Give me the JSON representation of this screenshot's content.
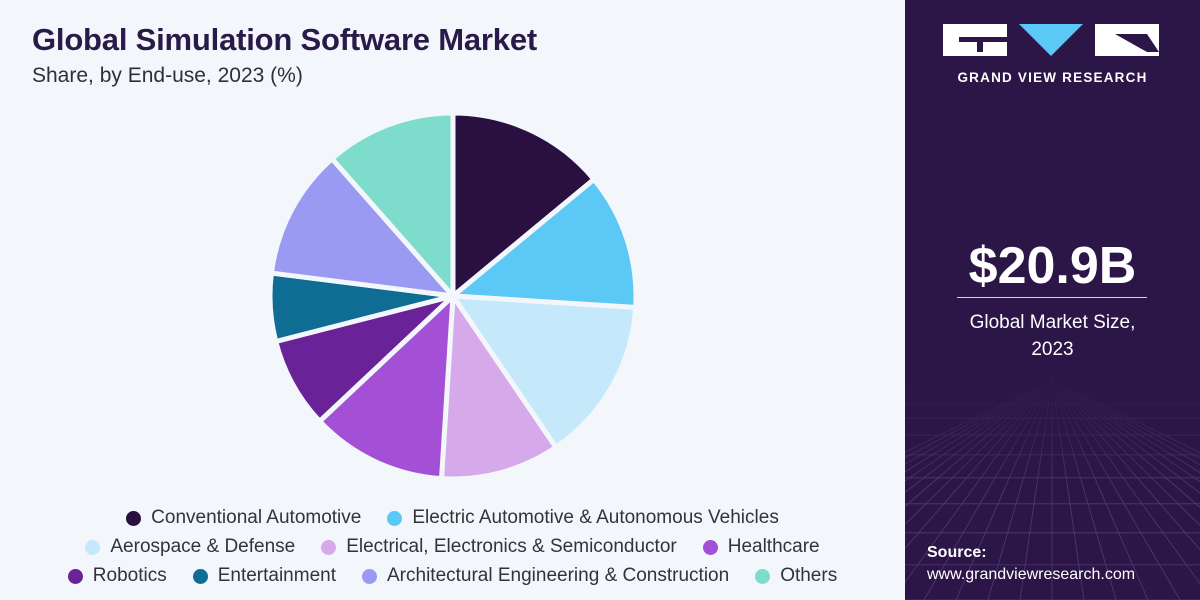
{
  "chart_data": {
    "type": "pie",
    "title": "Global Simulation Software Market",
    "subtitle": "Share, by End-use, 2023 (%)",
    "categories": [
      "Conventional Automotive",
      "Electric Automotive & Autonomous Vehicles",
      "Aerospace & Defense",
      "Electrical, Electronics & Semiconductor",
      "Healthcare",
      "Robotics",
      "Entertainment",
      "Architectural Engineering & Construction",
      "Others"
    ],
    "values": [
      14.0,
      12.0,
      14.5,
      10.5,
      12.0,
      8.0,
      6.0,
      11.5,
      11.5
    ],
    "colors": [
      "#2a1040",
      "#5bc8f5",
      "#c5e9fa",
      "#d6a9ea",
      "#a34fd6",
      "#6a2298",
      "#0f6d94",
      "#9a9af2",
      "#7ddccb"
    ],
    "legend_placement": "bottom"
  },
  "sidebar": {
    "brand_name": "GRAND VIEW RESEARCH",
    "market_size": "$20.9B",
    "market_size_label_line1": "Global Market Size,",
    "market_size_label_line2": "2023",
    "source_label": "Source:",
    "source_url": "www.grandviewresearch.com"
  }
}
